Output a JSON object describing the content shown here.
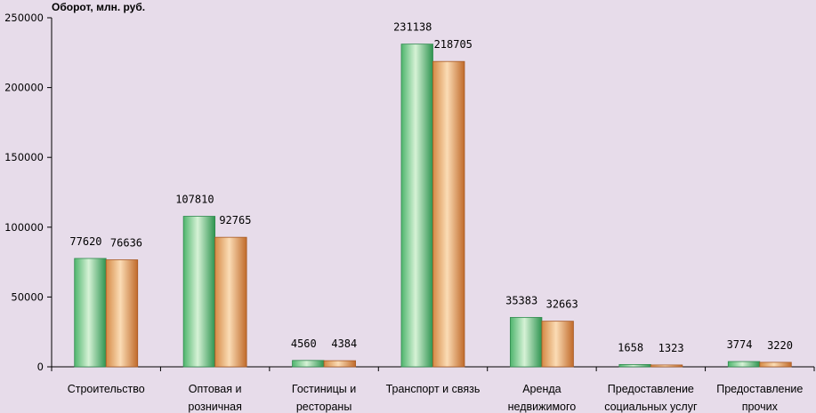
{
  "chart_data": {
    "type": "bar",
    "ylabel": "Оборот, млн. руб.",
    "ylim": [
      0,
      250000
    ],
    "yticks": [
      0,
      50000,
      100000,
      150000,
      200000,
      250000
    ],
    "categories": [
      [
        "Строительство"
      ],
      [
        "Оптовая и",
        "розничная"
      ],
      [
        "Гостиницы и",
        "рестораны"
      ],
      [
        "Транспорт и связь"
      ],
      [
        "Аренда",
        "недвижимого"
      ],
      [
        "Предоставление",
        "социальных услуг"
      ],
      [
        "Предоставление",
        "прочих"
      ]
    ],
    "series": [
      {
        "values": [
          77620,
          107810,
          4560,
          231138,
          35383,
          1658,
          3774
        ],
        "color": "#3aa860"
      },
      {
        "values": [
          76636,
          92765,
          4384,
          218705,
          32663,
          1323,
          3220
        ],
        "color": "#d7873f"
      }
    ],
    "grid": false,
    "legend": "none"
  }
}
